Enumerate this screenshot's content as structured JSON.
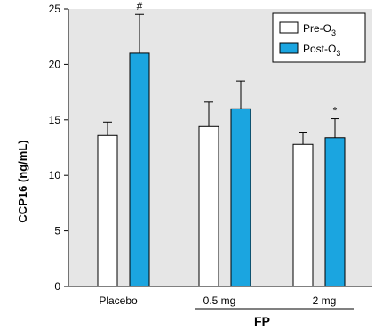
{
  "chart_data": {
    "type": "bar",
    "categories": [
      "Placebo",
      "0.5 mg",
      "2 mg"
    ],
    "group_label": "FP",
    "ylabel": "CCP16 (ng/mL)",
    "ylim": [
      0,
      25
    ],
    "yticks": [
      0,
      5,
      10,
      15,
      20,
      25
    ],
    "grid": false,
    "legend_position": "top-right",
    "series": [
      {
        "name": "Pre-O",
        "name_subscript": "3",
        "color": "#ffffff",
        "values": [
          13.6,
          14.4,
          12.8
        ],
        "error": [
          1.2,
          2.2,
          1.1
        ]
      },
      {
        "name": "Post-O",
        "name_subscript": "3",
        "color": "#1ba5e0",
        "values": [
          21.0,
          16.0,
          13.4
        ],
        "error": [
          3.5,
          2.5,
          1.7
        ]
      }
    ],
    "annotations": [
      {
        "series": 1,
        "category": 0,
        "text": "#"
      },
      {
        "series": 1,
        "category": 2,
        "text": "*"
      }
    ]
  }
}
